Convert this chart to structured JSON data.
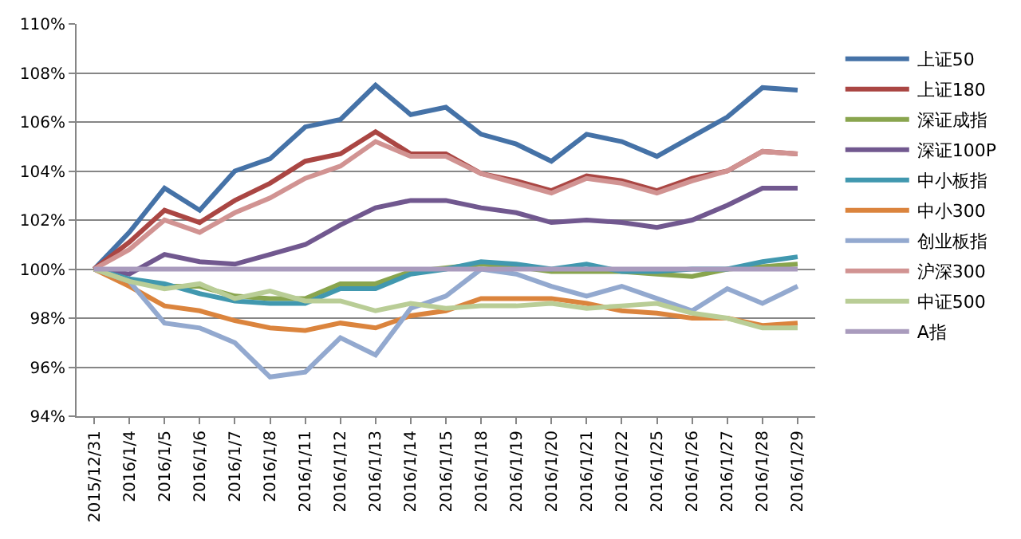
{
  "chart_data": {
    "type": "line",
    "categories": [
      "2015/12/31",
      "2016/1/4",
      "2016/1/5",
      "2016/1/6",
      "2016/1/7",
      "2016/1/8",
      "2016/1/11",
      "2016/1/12",
      "2016/1/13",
      "2016/1/14",
      "2016/1/15",
      "2016/1/18",
      "2016/1/19",
      "2016/1/20",
      "2016/1/21",
      "2016/1/22",
      "2016/1/25",
      "2016/1/26",
      "2016/1/27",
      "2016/1/28",
      "2016/1/29"
    ],
    "series": [
      {
        "name": "上证50",
        "color": "#4572a7",
        "values": [
          100,
          101.5,
          103.3,
          102.4,
          104.0,
          104.5,
          105.8,
          106.1,
          107.5,
          106.3,
          106.6,
          105.5,
          105.1,
          104.4,
          105.5,
          105.2,
          104.6,
          105.4,
          106.2,
          107.4,
          107.3
        ]
      },
      {
        "name": "上证180",
        "color": "#aa4643",
        "values": [
          100,
          101.1,
          102.4,
          101.9,
          102.8,
          103.5,
          104.4,
          104.7,
          105.6,
          104.7,
          104.7,
          103.9,
          103.6,
          103.2,
          103.8,
          103.6,
          103.2,
          103.7,
          104.0,
          104.8,
          104.7
        ]
      },
      {
        "name": "深证成指",
        "color": "#89a54e",
        "values": [
          100,
          99.5,
          99.3,
          99.3,
          98.9,
          98.8,
          98.8,
          99.4,
          99.4,
          99.9,
          null,
          100.2,
          100.1,
          99.9,
          99.9,
          99.9,
          99.8,
          99.7,
          100.0,
          100.1,
          100.2
        ]
      },
      {
        "name": "深证100P",
        "color": "#71588f",
        "values": [
          100,
          99.8,
          100.6,
          100.3,
          100.2,
          100.6,
          101.0,
          101.8,
          102.5,
          102.8,
          102.8,
          102.5,
          102.3,
          101.9,
          102.0,
          101.9,
          101.7,
          102.0,
          102.6,
          103.3,
          103.3
        ]
      },
      {
        "name": "中小板指",
        "color": "#4198af",
        "values": [
          100,
          99.6,
          99.4,
          99.0,
          98.7,
          98.6,
          98.6,
          99.2,
          99.2,
          99.8,
          100.0,
          100.3,
          100.2,
          100.0,
          100.2,
          99.9,
          99.9,
          100.0,
          100.0,
          100.3,
          100.5
        ]
      },
      {
        "name": "中小300",
        "color": "#db843d",
        "values": [
          100,
          99.3,
          98.5,
          98.3,
          97.9,
          97.6,
          97.5,
          97.8,
          97.6,
          98.1,
          98.3,
          98.8,
          98.8,
          98.8,
          98.6,
          98.3,
          98.2,
          98.0,
          98.0,
          97.7,
          97.8
        ]
      },
      {
        "name": "创业板指",
        "color": "#93a9cf",
        "values": [
          100,
          99.5,
          97.8,
          97.6,
          97.0,
          95.6,
          95.8,
          97.2,
          96.5,
          98.4,
          98.9,
          100.0,
          99.8,
          99.3,
          98.9,
          99.3,
          98.8,
          98.3,
          99.2,
          98.6,
          99.3
        ]
      },
      {
        "name": "沪深300",
        "color": "#d19392",
        "values": [
          100,
          100.8,
          102.0,
          101.5,
          102.3,
          102.9,
          103.7,
          104.2,
          105.2,
          104.6,
          104.6,
          103.9,
          103.5,
          103.1,
          103.7,
          103.5,
          103.1,
          103.6,
          104.0,
          104.8,
          104.7
        ]
      },
      {
        "name": "中证500",
        "color": "#b9cd96",
        "values": [
          100,
          99.5,
          99.2,
          99.4,
          98.8,
          99.1,
          98.7,
          98.7,
          98.3,
          98.6,
          98.4,
          98.5,
          98.5,
          98.6,
          98.4,
          98.5,
          98.6,
          98.2,
          98.0,
          97.6,
          97.6
        ]
      },
      {
        "name": "A指",
        "color": "#a99bbd",
        "values": [
          100,
          100,
          100,
          100,
          100,
          100,
          100,
          100,
          100,
          100,
          100,
          100,
          100,
          100,
          100,
          100,
          100,
          100,
          100,
          100,
          100
        ]
      }
    ],
    "ylim": [
      94,
      110
    ],
    "yticks": [
      {
        "value": 94,
        "label": "94%"
      },
      {
        "value": 96,
        "label": "96%"
      },
      {
        "value": 98,
        "label": "98%"
      },
      {
        "value": 100,
        "label": "100%"
      },
      {
        "value": 102,
        "label": "102%"
      },
      {
        "value": 104,
        "label": "104%"
      },
      {
        "value": 106,
        "label": "106%"
      },
      {
        "value": 108,
        "label": "108%"
      },
      {
        "value": 110,
        "label": "110%"
      }
    ],
    "grid": "y",
    "legend": "right",
    "marker": "none",
    "line_style": "solid"
  }
}
